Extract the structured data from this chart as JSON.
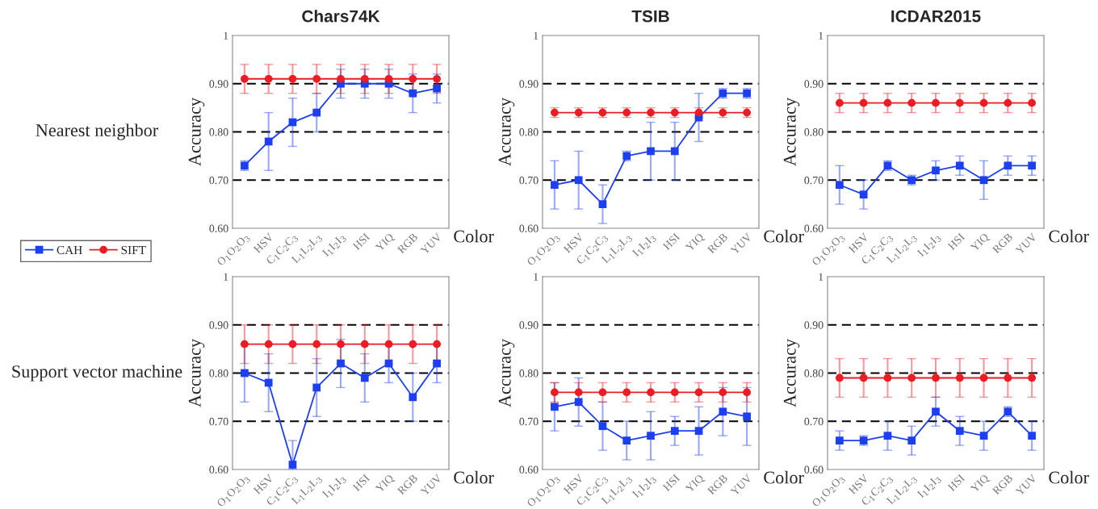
{
  "chart_data": [
    {
      "type": "line",
      "title": "Chars74K",
      "xlabel": "Color",
      "ylabel": "Accuracy",
      "annotations": [
        "Nearest neighbor"
      ],
      "legend": "bottom left",
      "categories": [
        "O$_{1}$O$_{2}$O$_{3}$",
        "HSV",
        "C$_{1}$C$_{2}$C$_{3}$",
        "L$_{1}$L$_{2}$L$_{3}$",
        "I$_{1}$I$_{2}$I$_{3}$",
        "HSI",
        "YIQ",
        "RGB",
        "YUV"
      ],
      "ylim": [
        0.6,
        1
      ],
      "yticks": [
        {
          "value": 0.6,
          "label": "0.60"
        },
        {
          "value": 0.7,
          "label": "0.70"
        },
        {
          "value": 0.8,
          "label": "0.80"
        },
        {
          "value": 0.9,
          "label": "0.90"
        },
        1
      ],
      "ref_lines": [
        {
          "axis": "y",
          "value": 0.7,
          "color": "#000000",
          "line_style": "dashed"
        },
        {
          "axis": "y",
          "value": 0.8,
          "color": "#000000",
          "line_style": "dashed"
        },
        {
          "axis": "y",
          "value": 0.9,
          "color": "#000000",
          "line_style": "dashed"
        }
      ],
      "series": [
        {
          "name": "CAH",
          "color": "#1d3ff2",
          "marker": "square",
          "values": [
            0.73,
            0.78,
            0.82,
            0.84,
            0.9,
            0.9,
            0.9,
            0.88,
            0.89
          ],
          "errors": [
            0.01,
            0.06,
            0.05,
            0.04,
            0.03,
            0.03,
            0.03,
            0.04,
            0.03
          ]
        },
        {
          "name": "SIFT",
          "color": "#ec1c24",
          "marker": "circle",
          "values": [
            0.91,
            0.91,
            0.91,
            0.91,
            0.91,
            0.91,
            0.91,
            0.91,
            0.91
          ],
          "errors": [
            0.03,
            0.03,
            0.03,
            0.03,
            0.03,
            0.03,
            0.03,
            0.03,
            0.03
          ]
        }
      ]
    },
    {
      "type": "line",
      "title": "TSIB",
      "xlabel": "Color",
      "ylabel": "Accuracy",
      "categories": [
        "O$_{1}$O$_{2}$O$_{3}$",
        "HSV",
        "C$_{1}$C$_{2}$C$_{3}$",
        "L$_{1}$L$_{2}$L$_{3}$",
        "I$_{1}$I$_{2}$I$_{3}$",
        "HSI",
        "YIQ",
        "RGB",
        "YUV"
      ],
      "ylim": [
        0.6,
        1
      ],
      "yticks": [
        {
          "value": 0.6,
          "label": "0.60"
        },
        {
          "value": 0.7,
          "label": "0.70"
        },
        {
          "value": 0.8,
          "label": "0.80"
        },
        {
          "value": 0.9,
          "label": "0.90"
        },
        1
      ],
      "ref_lines": [
        {
          "axis": "y",
          "value": 0.7,
          "color": "#000000",
          "line_style": "dashed"
        },
        {
          "axis": "y",
          "value": 0.8,
          "color": "#000000",
          "line_style": "dashed"
        },
        {
          "axis": "y",
          "value": 0.9,
          "color": "#000000",
          "line_style": "dashed"
        }
      ],
      "series": [
        {
          "color": "#1d3ff2",
          "marker": "square",
          "values": [
            0.69,
            0.7,
            0.65,
            0.75,
            0.76,
            0.76,
            0.83,
            0.88,
            0.88
          ],
          "errors": [
            0.05,
            0.06,
            0.04,
            0.01,
            0.06,
            0.06,
            0.05,
            0.01,
            0.01
          ]
        },
        {
          "color": "#ec1c24",
          "marker": "circle",
          "values": [
            0.84,
            0.84,
            0.84,
            0.84,
            0.84,
            0.84,
            0.84,
            0.84,
            0.84
          ],
          "errors": [
            0.01,
            0.01,
            0.01,
            0.01,
            0.01,
            0.01,
            0.01,
            0.01,
            0.01
          ]
        }
      ]
    },
    {
      "type": "line",
      "title": "ICDAR2015",
      "xlabel": "Color",
      "ylabel": "Accuracy",
      "categories": [
        "O$_{1}$O$_{2}$O$_{3}$",
        "HSV",
        "C$_{1}$C$_{2}$C$_{3}$",
        "L$_{1}$L$_{2}$L$_{3}$",
        "I$_{1}$I$_{2}$I$_{3}$",
        "HSI",
        "YIQ",
        "RGB",
        "YUV"
      ],
      "ylim": [
        0.6,
        1
      ],
      "yticks": [
        {
          "value": 0.6,
          "label": "0.60"
        },
        {
          "value": 0.7,
          "label": "0.70"
        },
        {
          "value": 0.8,
          "label": "0.80"
        },
        {
          "value": 0.9,
          "label": "0.90"
        },
        1
      ],
      "ref_lines": [
        {
          "axis": "y",
          "value": 0.7,
          "color": "#000000",
          "line_style": "dashed"
        },
        {
          "axis": "y",
          "value": 0.8,
          "color": "#000000",
          "line_style": "dashed"
        },
        {
          "axis": "y",
          "value": 0.9,
          "color": "#000000",
          "line_style": "dashed"
        }
      ],
      "series": [
        {
          "color": "#1d3ff2",
          "marker": "square",
          "values": [
            0.69,
            0.67,
            0.73,
            0.7,
            0.72,
            0.73,
            0.7,
            0.73,
            0.73
          ],
          "errors": [
            0.04,
            0.03,
            0.01,
            0.01,
            0.02,
            0.02,
            0.04,
            0.02,
            0.02
          ]
        },
        {
          "color": "#ec1c24",
          "marker": "circle",
          "values": [
            0.86,
            0.86,
            0.86,
            0.86,
            0.86,
            0.86,
            0.86,
            0.86,
            0.86
          ],
          "errors": [
            0.02,
            0.02,
            0.02,
            0.02,
            0.02,
            0.02,
            0.02,
            0.02,
            0.02
          ]
        }
      ]
    },
    {
      "type": "line",
      "xlabel": "Color",
      "ylabel": "Accuracy",
      "annotations": [
        "Support vector machine"
      ],
      "categories": [
        "O$_{1}$O$_{2}$O$_{3}$",
        "HSV",
        "C$_{1}$C$_{2}$C$_{3}$",
        "L$_{1}$L$_{2}$L$_{3}$",
        "I$_{1}$I$_{2}$I$_{3}$",
        "HSI",
        "YIQ",
        "RGB",
        "YUV"
      ],
      "ylim": [
        0.6,
        1
      ],
      "yticks": [
        {
          "value": 0.6,
          "label": "0.60"
        },
        {
          "value": 0.7,
          "label": "0.70"
        },
        {
          "value": 0.8,
          "label": "0.80"
        },
        {
          "value": 0.9,
          "label": "0.90"
        },
        1
      ],
      "ref_lines": [
        {
          "axis": "y",
          "value": 0.7,
          "color": "#000000",
          "line_style": "dashed"
        },
        {
          "axis": "y",
          "value": 0.8,
          "color": "#000000",
          "line_style": "dashed"
        },
        {
          "axis": "y",
          "value": 0.9,
          "color": "#000000",
          "line_style": "dashed"
        }
      ],
      "series": [
        {
          "color": "#1d3ff2",
          "marker": "square",
          "values": [
            0.8,
            0.78,
            0.61,
            0.77,
            0.82,
            0.79,
            0.82,
            0.75,
            0.82
          ],
          "errors": [
            0.06,
            0.06,
            [
              0.6,
              0.66
            ],
            0.06,
            0.05,
            0.05,
            0.04,
            0.05,
            0.04
          ]
        },
        {
          "color": "#ec1c24",
          "marker": "circle",
          "values": [
            0.86,
            0.86,
            0.86,
            0.86,
            0.86,
            0.86,
            0.86,
            0.86,
            0.86
          ],
          "errors": [
            0.04,
            0.04,
            0.04,
            0.04,
            0.04,
            0.04,
            0.04,
            0.04,
            0.04
          ]
        }
      ]
    },
    {
      "type": "line",
      "xlabel": "Color",
      "ylabel": "Accuracy",
      "categories": [
        "O$_{1}$O$_{2}$O$_{3}$",
        "HSV",
        "C$_{1}$C$_{2}$C$_{3}$",
        "L$_{1}$L$_{2}$L$_{3}$",
        "I$_{1}$I$_{2}$I$_{3}$",
        "HSI",
        "YIQ",
        "RGB",
        "YUV"
      ],
      "ylim": [
        0.6,
        1
      ],
      "yticks": [
        {
          "value": 0.6,
          "label": "0.60"
        },
        {
          "value": 0.7,
          "label": "0.70"
        },
        {
          "value": 0.8,
          "label": "0.80"
        },
        {
          "value": 0.9,
          "label": "0.90"
        },
        1
      ],
      "ref_lines": [
        {
          "axis": "y",
          "value": 0.7,
          "color": "#000000",
          "line_style": "dashed"
        },
        {
          "axis": "y",
          "value": 0.8,
          "color": "#000000",
          "line_style": "dashed"
        },
        {
          "axis": "y",
          "value": 0.9,
          "color": "#000000",
          "line_style": "dashed"
        }
      ],
      "series": [
        {
          "color": "#1d3ff2",
          "marker": "square",
          "values": [
            0.73,
            0.74,
            0.69,
            0.66,
            0.67,
            0.68,
            0.68,
            0.72,
            0.71
          ],
          "errors": [
            0.05,
            0.05,
            0.05,
            0.04,
            0.05,
            0.03,
            0.05,
            0.05,
            0.06
          ]
        },
        {
          "color": "#ec1c24",
          "marker": "circle",
          "values": [
            0.76,
            0.76,
            0.76,
            0.76,
            0.76,
            0.76,
            0.76,
            0.76,
            0.76
          ],
          "errors": [
            0.02,
            0.02,
            0.02,
            0.02,
            0.02,
            0.02,
            0.02,
            0.02,
            0.02
          ]
        }
      ]
    },
    {
      "type": "line",
      "xlabel": "Color",
      "ylabel": "Accuracy",
      "categories": [
        "O$_{1}$O$_{2}$O$_{3}$",
        "HSV",
        "C$_{1}$C$_{2}$C$_{3}$",
        "L$_{1}$L$_{2}$L$_{3}$",
        "I$_{1}$I$_{2}$I$_{3}$",
        "HSI",
        "YIQ",
        "RGB",
        "YUV"
      ],
      "ylim": [
        0.6,
        1
      ],
      "yticks": [
        {
          "value": 0.6,
          "label": "0.60"
        },
        {
          "value": 0.7,
          "label": "0.70"
        },
        {
          "value": 0.8,
          "label": "0.80"
        },
        {
          "value": 0.9,
          "label": "0.90"
        },
        1
      ],
      "ref_lines": [
        {
          "axis": "y",
          "value": 0.7,
          "color": "#000000",
          "line_style": "dashed"
        },
        {
          "axis": "y",
          "value": 0.8,
          "color": "#000000",
          "line_style": "dashed"
        },
        {
          "axis": "y",
          "value": 0.9,
          "color": "#000000",
          "line_style": "dashed"
        }
      ],
      "series": [
        {
          "color": "#1d3ff2",
          "marker": "square",
          "values": [
            0.66,
            0.66,
            0.67,
            0.66,
            0.72,
            0.68,
            0.67,
            0.72,
            0.67
          ],
          "errors": [
            0.02,
            0.01,
            0.03,
            0.03,
            0.03,
            0.03,
            0.03,
            0.01,
            0.03
          ]
        },
        {
          "color": "#ec1c24",
          "marker": "circle",
          "values": [
            0.79,
            0.79,
            0.79,
            0.79,
            0.79,
            0.79,
            0.79,
            0.79,
            0.79
          ],
          "errors": [
            0.04,
            0.04,
            0.04,
            0.04,
            0.04,
            0.04,
            0.04,
            0.04,
            0.04
          ]
        }
      ]
    }
  ]
}
